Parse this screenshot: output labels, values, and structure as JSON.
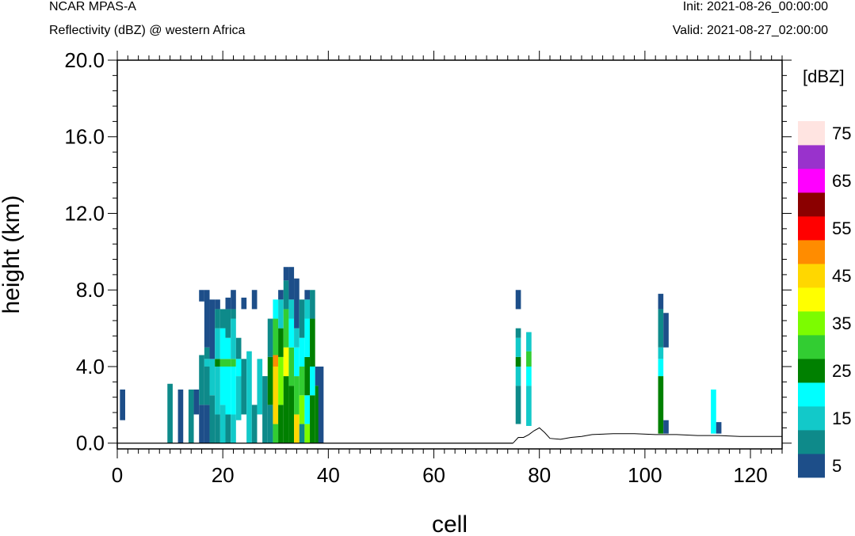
{
  "header": {
    "title": "NCAR MPAS-A",
    "subtitle": "Reflectivity (dBZ) @ western Africa",
    "init": "Init: 2021-08-26_00:00:00",
    "valid": "Valid: 2021-08-27_02:00:00"
  },
  "chart_data": {
    "type": "heatmap",
    "title": "NCAR MPAS-A",
    "subtitle": "Reflectivity (dBZ) @ western Africa",
    "xlabel": "cell",
    "ylabel": "height (km)",
    "xlim": [
      0,
      126
    ],
    "ylim": [
      -0.3,
      20.0
    ],
    "x_ticks": [
      0,
      20,
      40,
      60,
      80,
      100,
      120
    ],
    "y_ticks": [
      0.0,
      4.0,
      8.0,
      12.0,
      16.0,
      20.0
    ],
    "y_tick_labels": [
      "0.0",
      "4.0",
      "8.0",
      "12.0",
      "16.0",
      "20.0"
    ],
    "colorbar": {
      "label": "[dBZ]",
      "levels": [
        5,
        10,
        15,
        20,
        25,
        30,
        35,
        40,
        45,
        50,
        55,
        60,
        65,
        70,
        75
      ],
      "tick_labels": [
        "5",
        "15",
        "25",
        "35",
        "45",
        "55",
        "65",
        "75"
      ],
      "colors": [
        "#1d4e89",
        "#0e8a8a",
        "#12c9c9",
        "#00ffff",
        "#008000",
        "#32cd32",
        "#7cfc00",
        "#ffff00",
        "#ffd700",
        "#ff8c00",
        "#ff0000",
        "#8b0000",
        "#ff00ff",
        "#9932cc",
        "#ffe4e1"
      ]
    },
    "reflectivity_columns": [
      {
        "cell": 1,
        "bins": [
          [
            1.2,
            2.8,
            5
          ]
        ]
      },
      {
        "cell": 10,
        "bins": [
          [
            0.0,
            3.1,
            10
          ]
        ]
      },
      {
        "cell": 12,
        "bins": [
          [
            0.0,
            2.8,
            5
          ]
        ]
      },
      {
        "cell": 14,
        "bins": [
          [
            0.0,
            2.8,
            10
          ]
        ]
      },
      {
        "cell": 15,
        "bins": [
          [
            1.5,
            2.8,
            5
          ]
        ]
      },
      {
        "cell": 16,
        "bins": [
          [
            0.0,
            2.0,
            5
          ],
          [
            2.0,
            4.6,
            10
          ],
          [
            7.4,
            8.0,
            5
          ]
        ]
      },
      {
        "cell": 17,
        "bins": [
          [
            0.0,
            2.0,
            5
          ],
          [
            2.0,
            4.0,
            10
          ],
          [
            4.0,
            4.4,
            15
          ],
          [
            4.4,
            5.0,
            10
          ],
          [
            5.0,
            8.0,
            5
          ]
        ]
      },
      {
        "cell": 18,
        "bins": [
          [
            0.0,
            2.5,
            10
          ],
          [
            2.5,
            4.4,
            15
          ],
          [
            4.4,
            7.5,
            5
          ]
        ]
      },
      {
        "cell": 19,
        "bins": [
          [
            0.0,
            1.5,
            10
          ],
          [
            1.5,
            4.0,
            15
          ],
          [
            4.0,
            4.4,
            25
          ],
          [
            4.4,
            6.0,
            15
          ],
          [
            6.0,
            7.0,
            10
          ],
          [
            7.0,
            7.5,
            5
          ]
        ]
      },
      {
        "cell": 20,
        "bins": [
          [
            0.0,
            2.0,
            15
          ],
          [
            2.0,
            4.0,
            20
          ],
          [
            4.0,
            4.4,
            30
          ],
          [
            4.4,
            6.0,
            20
          ],
          [
            6.0,
            7.0,
            10
          ]
        ]
      },
      {
        "cell": 21,
        "bins": [
          [
            0.0,
            1.5,
            10
          ],
          [
            1.5,
            4.0,
            20
          ],
          [
            4.0,
            4.4,
            30
          ],
          [
            4.4,
            5.5,
            20
          ],
          [
            5.5,
            7.0,
            10
          ],
          [
            7.0,
            7.6,
            5
          ]
        ]
      },
      {
        "cell": 22,
        "bins": [
          [
            0.0,
            1.5,
            15
          ],
          [
            1.5,
            4.0,
            20
          ],
          [
            4.0,
            4.4,
            30
          ],
          [
            4.4,
            6.5,
            15
          ],
          [
            6.5,
            7.0,
            10
          ],
          [
            7.0,
            8.0,
            5
          ]
        ]
      },
      {
        "cell": 23,
        "bins": [
          [
            1.2,
            3.5,
            15
          ],
          [
            3.5,
            4.4,
            20
          ],
          [
            4.4,
            5.5,
            10
          ]
        ]
      },
      {
        "cell": 24,
        "bins": [
          [
            1.5,
            4.4,
            10
          ],
          [
            7.0,
            7.6,
            5
          ]
        ]
      },
      {
        "cell": 25,
        "bins": [
          [
            0.0,
            4.8,
            15
          ]
        ]
      },
      {
        "cell": 26,
        "bins": [
          [
            0.0,
            2.0,
            10
          ],
          [
            7.0,
            8.0,
            5
          ]
        ]
      },
      {
        "cell": 27,
        "bins": [
          [
            1.5,
            4.4,
            15
          ]
        ]
      },
      {
        "cell": 28,
        "bins": [
          [
            0.0,
            3.5,
            10
          ]
        ]
      },
      {
        "cell": 29,
        "bins": [
          [
            0.0,
            2.0,
            10
          ],
          [
            2.0,
            4.5,
            25
          ],
          [
            4.5,
            6.5,
            10
          ]
        ]
      },
      {
        "cell": 30,
        "bins": [
          [
            0.0,
            1.0,
            30
          ],
          [
            1.0,
            4.0,
            45
          ],
          [
            4.0,
            4.6,
            50
          ],
          [
            4.6,
            6.5,
            30
          ],
          [
            6.5,
            7.5,
            20
          ]
        ]
      },
      {
        "cell": 31,
        "bins": [
          [
            0.0,
            2.0,
            25
          ],
          [
            2.0,
            4.5,
            35
          ],
          [
            4.5,
            6.0,
            25
          ],
          [
            6.0,
            7.5,
            15
          ],
          [
            7.5,
            8.0,
            5
          ]
        ]
      },
      {
        "cell": 32,
        "bins": [
          [
            0.0,
            3.5,
            25
          ],
          [
            3.5,
            5.0,
            40
          ],
          [
            5.0,
            7.0,
            30
          ],
          [
            7.0,
            8.5,
            10
          ],
          [
            8.5,
            9.2,
            5
          ]
        ]
      },
      {
        "cell": 33,
        "bins": [
          [
            0.0,
            3.0,
            25
          ],
          [
            3.0,
            5.0,
            30
          ],
          [
            5.0,
            6.5,
            20
          ],
          [
            6.5,
            7.5,
            15
          ],
          [
            7.5,
            9.2,
            5
          ]
        ]
      },
      {
        "cell": 34,
        "bins": [
          [
            0.0,
            1.5,
            45
          ],
          [
            1.5,
            3.5,
            30
          ],
          [
            3.5,
            5.0,
            20
          ],
          [
            5.0,
            6.0,
            15
          ],
          [
            6.0,
            8.6,
            5
          ]
        ]
      },
      {
        "cell": 35,
        "bins": [
          [
            0.0,
            1.0,
            10
          ],
          [
            1.0,
            2.5,
            35
          ],
          [
            2.5,
            4.0,
            30
          ],
          [
            4.0,
            5.5,
            20
          ],
          [
            5.5,
            7.5,
            10
          ]
        ]
      },
      {
        "cell": 36,
        "bins": [
          [
            0.0,
            1.0,
            35
          ],
          [
            1.0,
            2.5,
            20
          ],
          [
            2.5,
            4.5,
            25
          ],
          [
            4.5,
            6.5,
            20
          ],
          [
            6.5,
            7.5,
            15
          ],
          [
            7.5,
            8.0,
            5
          ]
        ]
      },
      {
        "cell": 37,
        "bins": [
          [
            0.0,
            2.5,
            25
          ],
          [
            2.5,
            4.0,
            20
          ],
          [
            4.0,
            6.5,
            25
          ],
          [
            6.5,
            8.0,
            10
          ]
        ]
      },
      {
        "cell": 38,
        "bins": [
          [
            0.0,
            3.0,
            25
          ],
          [
            3.0,
            4.0,
            5
          ]
        ]
      },
      {
        "cell": 38.6,
        "bins": [
          [
            0.0,
            4.0,
            5
          ]
        ]
      },
      {
        "cell": 76,
        "bins": [
          [
            7.0,
            8.0,
            5
          ],
          [
            1.0,
            3.0,
            10
          ],
          [
            3.0,
            4.0,
            15
          ],
          [
            4.0,
            4.5,
            25
          ],
          [
            4.5,
            5.5,
            15
          ],
          [
            5.5,
            6.0,
            10
          ]
        ]
      },
      {
        "cell": 78,
        "bins": [
          [
            0.9,
            3.0,
            15
          ],
          [
            3.0,
            4.0,
            20
          ],
          [
            4.0,
            4.8,
            30
          ],
          [
            4.8,
            5.8,
            15
          ]
        ]
      },
      {
        "cell": 103,
        "bins": [
          [
            0.5,
            3.5,
            25
          ],
          [
            3.5,
            4.4,
            20
          ],
          [
            4.4,
            5.0,
            15
          ],
          [
            5.0,
            7.0,
            10
          ],
          [
            7.0,
            7.8,
            5
          ]
        ]
      },
      {
        "cell": 104,
        "bins": [
          [
            0.5,
            1.2,
            5
          ],
          [
            5.0,
            6.8,
            5
          ]
        ]
      },
      {
        "cell": 113,
        "bins": [
          [
            0.5,
            2.8,
            20
          ]
        ]
      },
      {
        "cell": 114,
        "bins": [
          [
            0.5,
            1.1,
            5
          ]
        ]
      }
    ],
    "terrain_km": [
      [
        75,
        0.0
      ],
      [
        76,
        0.3
      ],
      [
        77,
        0.3
      ],
      [
        78,
        0.45
      ],
      [
        79,
        0.65
      ],
      [
        80,
        0.8
      ],
      [
        81,
        0.55
      ],
      [
        82,
        0.25
      ],
      [
        84,
        0.2
      ],
      [
        86,
        0.3
      ],
      [
        88,
        0.35
      ],
      [
        90,
        0.45
      ],
      [
        94,
        0.5
      ],
      [
        98,
        0.5
      ],
      [
        102,
        0.45
      ],
      [
        106,
        0.45
      ],
      [
        110,
        0.4
      ],
      [
        114,
        0.4
      ],
      [
        118,
        0.35
      ],
      [
        122,
        0.35
      ],
      [
        126,
        0.35
      ]
    ]
  }
}
